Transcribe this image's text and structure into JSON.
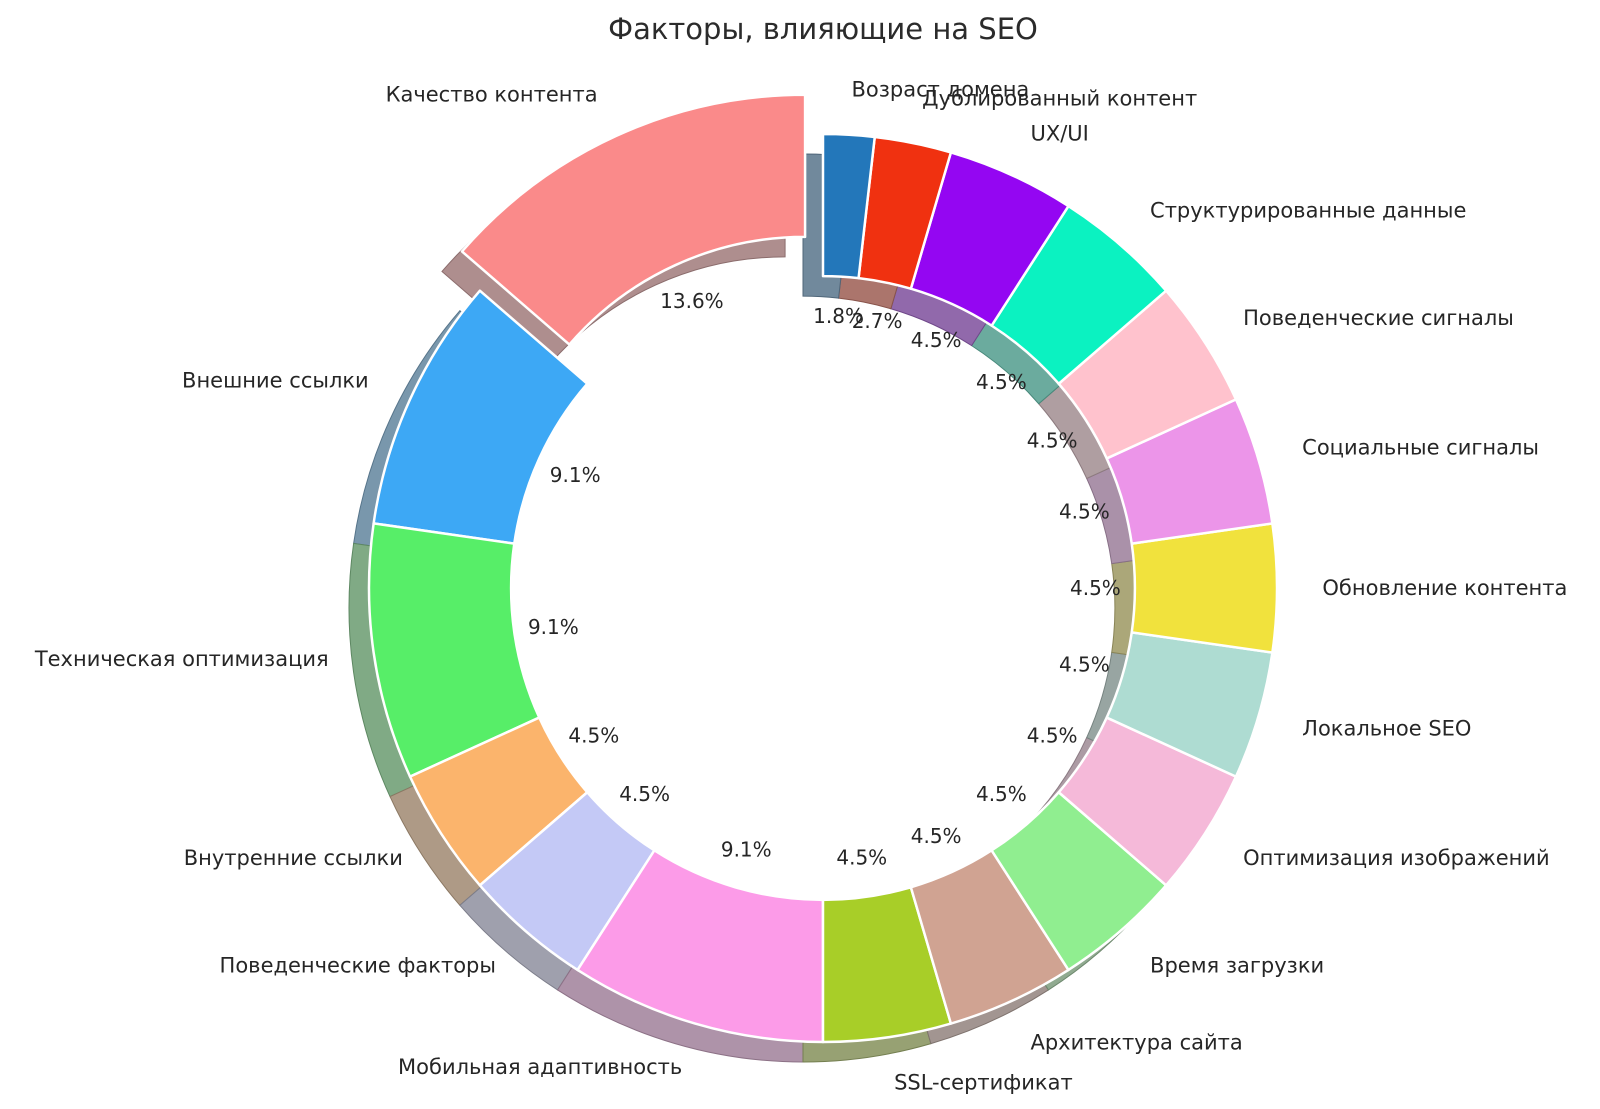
{
  "chart_data": {
    "type": "pie",
    "title": "Факторы, влияющие на SEO",
    "total": 110,
    "start_angle": 90,
    "direction": "counterclockwise",
    "donut_hole_ratio": 0.687,
    "shadow": true,
    "label_distance": 1.1,
    "pct_distance": 0.6,
    "legend": "none",
    "slices": [
      {
        "label": "Качество контента",
        "value": 15,
        "pct": "13.6%",
        "color": "#FA8A8A",
        "explode": 0.095
      },
      {
        "label": "Внешние ссылки",
        "value": 10,
        "pct": "9.1%",
        "color": "#3DA8F5",
        "explode": 0
      },
      {
        "label": "Техническая оптимизация",
        "value": 10,
        "pct": "9.1%",
        "color": "#57EE68",
        "explode": 0
      },
      {
        "label": "Внутренние ссылки",
        "value": 5,
        "pct": "4.5%",
        "color": "#FBB46C",
        "explode": 0
      },
      {
        "label": "Поведенческие факторы",
        "value": 5,
        "pct": "4.5%",
        "color": "#C4C9F6",
        "explode": 0
      },
      {
        "label": "Мобильная адаптивность",
        "value": 10,
        "pct": "9.1%",
        "color": "#FC9BE8",
        "explode": 0
      },
      {
        "label": "SSL-сертификат",
        "value": 5,
        "pct": "4.5%",
        "color": "#A8CE28",
        "explode": 0
      },
      {
        "label": "Архитектура сайта",
        "value": 5,
        "pct": "4.5%",
        "color": "#D0A392",
        "explode": 0
      },
      {
        "label": "Время загрузки",
        "value": 5,
        "pct": "4.5%",
        "color": "#90EE90",
        "explode": 0
      },
      {
        "label": "Оптимизация изображений",
        "value": 5,
        "pct": "4.5%",
        "color": "#F5B9D9",
        "explode": 0
      },
      {
        "label": "Локальное SEO",
        "value": 5,
        "pct": "4.5%",
        "color": "#AEDCD2",
        "explode": 0
      },
      {
        "label": "Обновление контента",
        "value": 5,
        "pct": "4.5%",
        "color": "#F1E23D",
        "explode": 0
      },
      {
        "label": "Социальные сигналы",
        "value": 5,
        "pct": "4.5%",
        "color": "#EC95E9",
        "explode": 0
      },
      {
        "label": "Поведенческие сигналы",
        "value": 5,
        "pct": "4.5%",
        "color": "#FFC2CD",
        "explode": 0
      },
      {
        "label": "Структурированные данные",
        "value": 5,
        "pct": "4.5%",
        "color": "#0BF2C1",
        "explode": 0
      },
      {
        "label": "UX/UI",
        "value": 5,
        "pct": "4.5%",
        "color": "#9406F2",
        "explode": 0
      },
      {
        "label": "Дублированный контент",
        "value": 3,
        "pct": "2.7%",
        "color": "#F03110",
        "explode": 0
      },
      {
        "label": "Возраст домена",
        "value": 2,
        "pct": "1.8%",
        "color": "#2377BA",
        "explode": 0
      }
    ]
  }
}
